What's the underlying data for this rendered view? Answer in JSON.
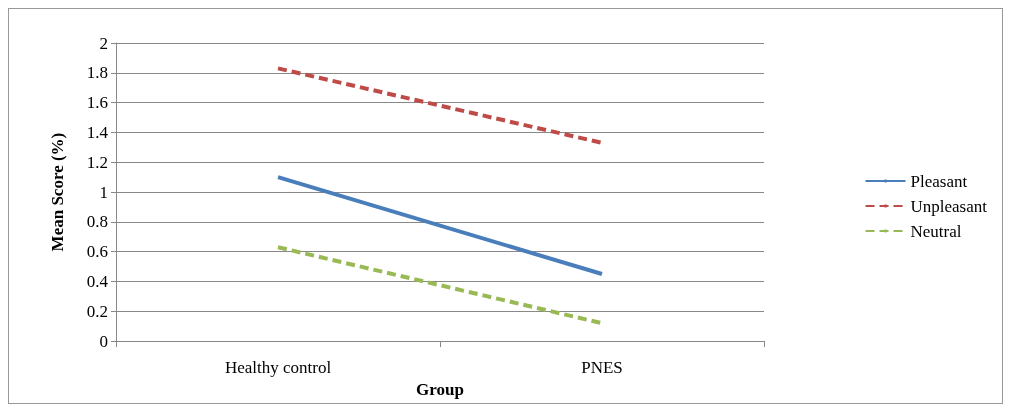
{
  "chart_data": {
    "type": "line",
    "xlabel": "Group",
    "ylabel": "Mean Score (%)",
    "categories": [
      "Healthy control",
      "PNES"
    ],
    "series": [
      {
        "name": "Pleasant",
        "color": "#4a7ebb",
        "values": [
          1.1,
          0.45
        ],
        "line_style": "solid"
      },
      {
        "name": "Unpleasant",
        "color": "#be4b48",
        "values": [
          1.83,
          1.33
        ],
        "line_style": "dashed"
      },
      {
        "name": "Neutral",
        "color": "#98b954",
        "values": [
          0.63,
          0.12
        ],
        "line_style": "dashed"
      }
    ],
    "ylim": [
      0,
      2
    ],
    "yticks": [
      0,
      0.2,
      0.4,
      0.6,
      0.8,
      1,
      1.2,
      1.4,
      1.6,
      1.8,
      2
    ],
    "grid": "y",
    "legend": "right",
    "marker": "none"
  }
}
